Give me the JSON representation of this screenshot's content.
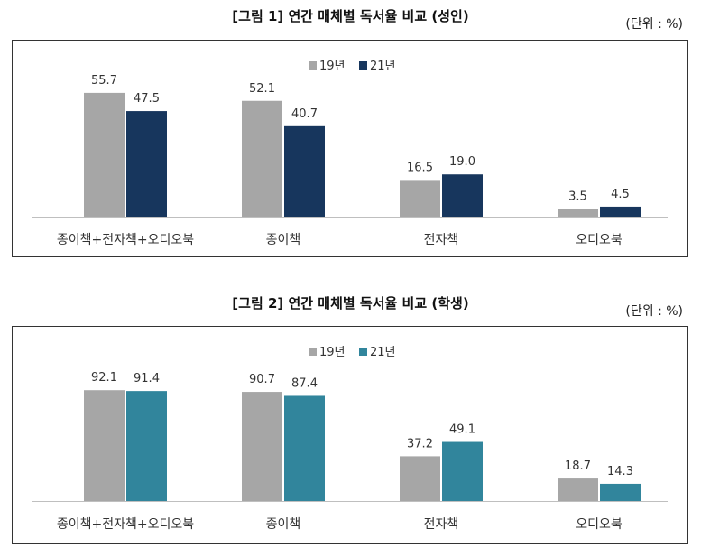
{
  "chart_data": [
    {
      "type": "bar",
      "title": "[그림 1] 연간 매체별 독서율 비교 (성인)",
      "unit_label": "(단위 : %)",
      "categories": [
        "종이책+전자책+오디오북",
        "종이책",
        "전자책",
        "오디오북"
      ],
      "series": [
        {
          "name": "19년",
          "values": [
            55.7,
            52.1,
            16.5,
            3.5
          ],
          "color": "#a6a6a6"
        },
        {
          "name": "21년",
          "values": [
            47.5,
            40.7,
            19.0,
            4.5
          ],
          "color": "#17365d"
        }
      ],
      "value_labels": [
        [
          "55.7",
          "52.1",
          "16.5",
          "3.5"
        ],
        [
          "47.5",
          "40.7",
          "19.0",
          "4.5"
        ]
      ],
      "ylim": [
        0,
        65
      ],
      "legend": "top-center",
      "grid": false
    },
    {
      "type": "bar",
      "title": "[그림 2] 연간 매체별 독서율 비교 (학생)",
      "unit_label": "(단위 : %)",
      "categories": [
        "종이책+전자책+오디오북",
        "종이책",
        "전자책",
        "오디오북"
      ],
      "series": [
        {
          "name": "19년",
          "values": [
            92.1,
            90.7,
            37.2,
            18.7
          ],
          "color": "#a6a6a6"
        },
        {
          "name": "21년",
          "values": [
            91.4,
            87.4,
            49.1,
            14.3
          ],
          "color": "#31859c"
        }
      ],
      "value_labels": [
        [
          "92.1",
          "90.7",
          "37.2",
          "18.7"
        ],
        [
          "91.4",
          "87.4",
          "49.1",
          "14.3"
        ]
      ],
      "ylim": [
        0,
        108
      ],
      "legend": "top-center",
      "grid": false
    }
  ]
}
